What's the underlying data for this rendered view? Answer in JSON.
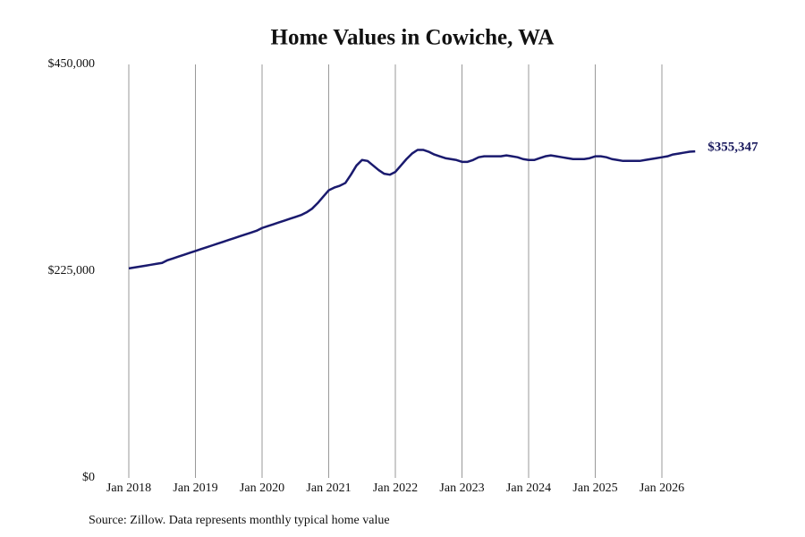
{
  "chart_data": {
    "type": "line",
    "title": "Home Values in Cowiche, WA",
    "source": "Source: Zillow. Data represents monthly typical home value",
    "x": [
      "2018-01",
      "2018-02",
      "2018-03",
      "2018-04",
      "2018-05",
      "2018-06",
      "2018-07",
      "2018-08",
      "2018-09",
      "2018-10",
      "2018-11",
      "2018-12",
      "2019-01",
      "2019-02",
      "2019-03",
      "2019-04",
      "2019-05",
      "2019-06",
      "2019-07",
      "2019-08",
      "2019-09",
      "2019-10",
      "2019-11",
      "2019-12",
      "2020-01",
      "2020-02",
      "2020-03",
      "2020-04",
      "2020-05",
      "2020-06",
      "2020-07",
      "2020-08",
      "2020-09",
      "2020-10",
      "2020-11",
      "2020-12",
      "2021-01",
      "2021-02",
      "2021-03",
      "2021-04",
      "2021-05",
      "2021-06",
      "2021-07",
      "2021-08",
      "2021-09",
      "2021-10",
      "2021-11",
      "2021-12",
      "2022-01",
      "2022-02",
      "2022-03",
      "2022-04",
      "2022-05",
      "2022-06",
      "2022-07",
      "2022-08",
      "2022-09",
      "2022-10",
      "2022-11",
      "2022-12",
      "2023-01",
      "2023-02",
      "2023-03",
      "2023-04",
      "2023-05",
      "2023-06",
      "2023-07",
      "2023-08",
      "2023-09",
      "2023-10",
      "2023-11",
      "2023-12",
      "2024-01",
      "2024-02",
      "2024-03",
      "2024-04",
      "2024-05",
      "2024-06",
      "2024-07",
      "2024-08",
      "2024-09",
      "2024-10",
      "2024-11",
      "2024-12",
      "2025-01",
      "2025-02",
      "2025-03",
      "2025-04",
      "2025-05",
      "2025-06",
      "2025-07",
      "2025-08",
      "2025-09",
      "2025-10",
      "2025-11",
      "2025-12",
      "2026-01",
      "2026-02",
      "2026-03",
      "2026-04",
      "2026-05",
      "2026-06",
      "2026-07"
    ],
    "series": [
      {
        "color": "#1a1a6e",
        "values": [
          228000,
          229000,
          230000,
          231000,
          232000,
          233000,
          234000,
          237000,
          239000,
          241000,
          243000,
          245000,
          247000,
          249000,
          251000,
          253000,
          255000,
          257000,
          259000,
          261000,
          263000,
          265000,
          267000,
          269000,
          272000,
          274000,
          276000,
          278000,
          280000,
          282000,
          284000,
          286000,
          289000,
          293000,
          299000,
          306000,
          313000,
          316000,
          318000,
          321000,
          330000,
          340000,
          346000,
          345000,
          340000,
          335000,
          331000,
          330000,
          333000,
          340000,
          347000,
          353000,
          357000,
          357000,
          355000,
          352000,
          350000,
          348000,
          347000,
          346000,
          344000,
          344000,
          346000,
          349000,
          350000,
          350000,
          350000,
          350000,
          351000,
          350000,
          349000,
          347000,
          346000,
          346000,
          348000,
          350000,
          351000,
          350000,
          349000,
          348000,
          347000,
          347000,
          347000,
          348000,
          350000,
          350000,
          349000,
          347000,
          346000,
          345000,
          345000,
          345000,
          345000,
          346000,
          347000,
          348000,
          349000,
          350000,
          352000,
          353000,
          354000,
          355000,
          355347
        ]
      }
    ],
    "annotations": [
      {
        "x": "2026-07",
        "value": 355347,
        "label": "$355,347"
      }
    ],
    "ylim": [
      0,
      450000
    ],
    "yticks": [
      {
        "value": 0,
        "label": "$0"
      },
      {
        "value": 225000,
        "label": "$225,000"
      },
      {
        "value": 450000,
        "label": "$450,000"
      }
    ],
    "xticks": [
      {
        "value": "2018-01",
        "label": "Jan 2018"
      },
      {
        "value": "2019-01",
        "label": "Jan 2019"
      },
      {
        "value": "2020-01",
        "label": "Jan 2020"
      },
      {
        "value": "2021-01",
        "label": "Jan 2021"
      },
      {
        "value": "2022-01",
        "label": "Jan 2022"
      },
      {
        "value": "2023-01",
        "label": "Jan 2023"
      },
      {
        "value": "2024-01",
        "label": "Jan 2024"
      },
      {
        "value": "2025-01",
        "label": "Jan 2025"
      },
      {
        "value": "2026-01",
        "label": "Jan 2026"
      }
    ],
    "grid": "x"
  }
}
